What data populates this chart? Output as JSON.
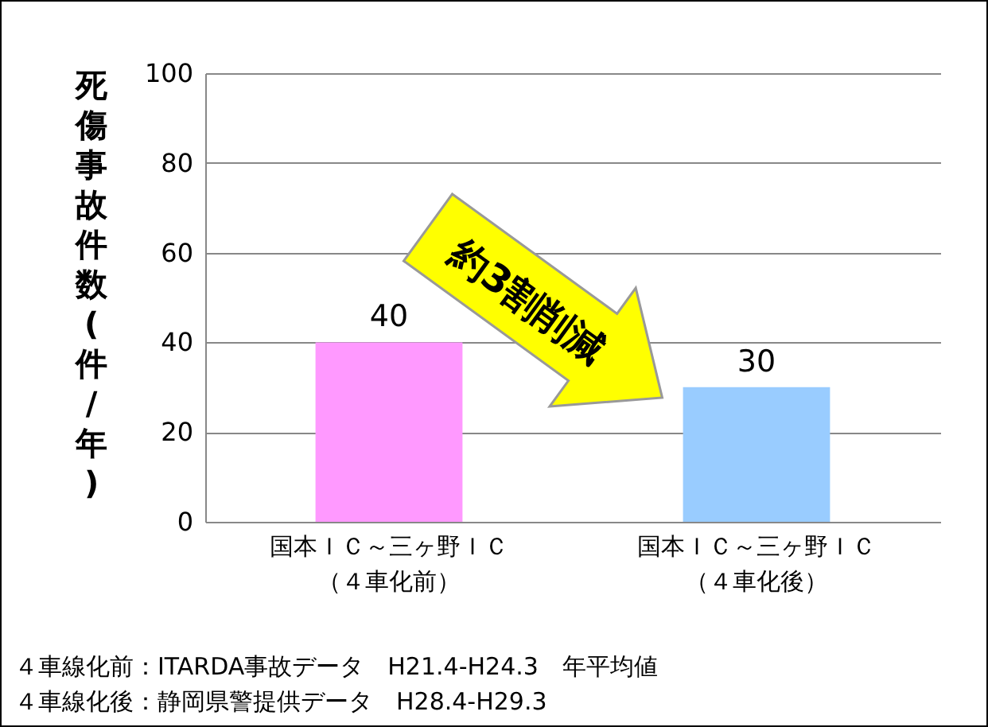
{
  "chart_data": {
    "type": "bar",
    "ylabel": "死傷事故件数(件/年)",
    "categories": [
      "国本ＩＣ～三ヶ野ＩＣ（４車化前）",
      "国本ＩＣ～三ヶ野ＩＣ（４車化後）"
    ],
    "values": [
      40,
      30
    ],
    "colors": [
      "#ff99ff",
      "#99ccff"
    ],
    "ylim": [
      0,
      100
    ],
    "yticks": [
      0,
      20,
      40,
      60,
      80,
      100
    ],
    "grid": "y",
    "data_labels": true,
    "annotations": [
      "約3割削減",
      "４車線化前：ITARDA事故データ　H21.4-H24.3　年平均値",
      "４車線化後：静岡県警提供データ　H28.4-H29.3"
    ]
  }
}
